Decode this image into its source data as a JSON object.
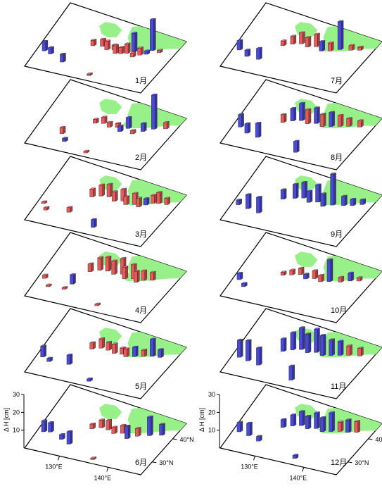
{
  "chart_data": {
    "type": "bar3d",
    "title": "",
    "colors": {
      "positive": "#e85a5a",
      "negative": "#4a4ad8",
      "land": "#98f089",
      "frame": "#000000"
    },
    "zaxis": {
      "label": "Δ H [cm]",
      "ticks": [
        10,
        20,
        30
      ],
      "range": [
        0,
        30
      ]
    },
    "lon_ticks": [
      {
        "value": 130,
        "label": "130°E"
      },
      {
        "value": 140,
        "label": "140°E"
      }
    ],
    "lat_ticks": [
      {
        "value": 30,
        "label": "30°N"
      },
      {
        "value": 40,
        "label": "40°N"
      }
    ],
    "panels": [
      {
        "month": 1,
        "label": "1月",
        "bars": [
          [
            0.06,
            0.27,
            12,
            "neg"
          ],
          [
            0.12,
            0.25,
            8,
            "neg"
          ],
          [
            0.25,
            0.18,
            10,
            "neg"
          ],
          [
            0.38,
            0.52,
            7,
            "pos"
          ],
          [
            0.45,
            0.55,
            9,
            "pos"
          ],
          [
            0.5,
            0.52,
            11,
            "pos"
          ],
          [
            0.55,
            0.55,
            6,
            "pos"
          ],
          [
            0.58,
            0.5,
            10,
            "pos"
          ],
          [
            0.62,
            0.52,
            8,
            "pos"
          ],
          [
            0.66,
            0.55,
            12,
            "pos"
          ],
          [
            0.7,
            0.6,
            24,
            "neg"
          ],
          [
            0.72,
            0.52,
            5,
            "pos"
          ],
          [
            0.76,
            0.58,
            9,
            "pos"
          ],
          [
            0.8,
            0.62,
            4,
            "neg"
          ],
          [
            0.82,
            0.7,
            40,
            "neg"
          ],
          [
            0.88,
            0.7,
            3,
            "pos"
          ],
          [
            0.52,
            0.08,
            2,
            "pos"
          ]
        ]
      },
      {
        "month": 2,
        "label": "2月",
        "bars": [
          [
            0.22,
            0.25,
            8,
            "pos"
          ],
          [
            0.28,
            0.15,
            4,
            "neg"
          ],
          [
            0.4,
            0.52,
            5,
            "pos"
          ],
          [
            0.46,
            0.55,
            8,
            "pos"
          ],
          [
            0.52,
            0.52,
            6,
            "pos"
          ],
          [
            0.58,
            0.55,
            5,
            "pos"
          ],
          [
            0.62,
            0.5,
            7,
            "neg"
          ],
          [
            0.66,
            0.58,
            14,
            "neg"
          ],
          [
            0.72,
            0.52,
            4,
            "pos"
          ],
          [
            0.78,
            0.6,
            10,
            "neg"
          ],
          [
            0.84,
            0.68,
            44,
            "neg"
          ],
          [
            0.92,
            0.74,
            8,
            "pos"
          ],
          [
            0.5,
            0.06,
            2,
            "pos"
          ]
        ]
      },
      {
        "month": 3,
        "label": "3月",
        "bars": [
          [
            0.05,
            0.28,
            2,
            "pos"
          ],
          [
            0.1,
            0.2,
            3,
            "pos"
          ],
          [
            0.28,
            0.25,
            6,
            "pos"
          ],
          [
            0.36,
            0.55,
            10,
            "pos"
          ],
          [
            0.42,
            0.6,
            14,
            "pos"
          ],
          [
            0.48,
            0.62,
            16,
            "pos"
          ],
          [
            0.54,
            0.58,
            12,
            "pos"
          ],
          [
            0.6,
            0.62,
            15,
            "pos"
          ],
          [
            0.64,
            0.58,
            10,
            "pos"
          ],
          [
            0.7,
            0.62,
            14,
            "pos"
          ],
          [
            0.74,
            0.6,
            11,
            "pos"
          ],
          [
            0.78,
            0.66,
            8,
            "neg"
          ],
          [
            0.82,
            0.72,
            10,
            "pos"
          ],
          [
            0.86,
            0.74,
            14,
            "pos"
          ],
          [
            0.92,
            0.76,
            8,
            "pos"
          ],
          [
            0.54,
            0.12,
            10,
            "neg"
          ]
        ]
      },
      {
        "month": 4,
        "label": "4月",
        "bars": [
          [
            0.05,
            0.3,
            4,
            "pos"
          ],
          [
            0.12,
            0.2,
            2,
            "pos"
          ],
          [
            0.25,
            0.22,
            2,
            "pos"
          ],
          [
            0.34,
            0.56,
            10,
            "pos"
          ],
          [
            0.4,
            0.62,
            16,
            "pos"
          ],
          [
            0.46,
            0.64,
            18,
            "pos"
          ],
          [
            0.52,
            0.62,
            17,
            "pos"
          ],
          [
            0.58,
            0.66,
            20,
            "pos"
          ],
          [
            0.62,
            0.6,
            15,
            "pos"
          ],
          [
            0.68,
            0.64,
            18,
            "pos"
          ],
          [
            0.72,
            0.6,
            14,
            "pos"
          ],
          [
            0.76,
            0.66,
            12,
            "pos"
          ],
          [
            0.82,
            0.7,
            10,
            "pos"
          ],
          [
            0.28,
            0.32,
            12,
            "neg"
          ],
          [
            0.58,
            0.1,
            2,
            "pos"
          ]
        ]
      },
      {
        "month": 5,
        "label": "5月",
        "bars": [
          [
            0.05,
            0.26,
            14,
            "neg"
          ],
          [
            0.12,
            0.22,
            4,
            "neg"
          ],
          [
            0.28,
            0.25,
            12,
            "neg"
          ],
          [
            0.36,
            0.55,
            8,
            "pos"
          ],
          [
            0.42,
            0.6,
            12,
            "pos"
          ],
          [
            0.48,
            0.6,
            10,
            "pos"
          ],
          [
            0.54,
            0.58,
            12,
            "pos"
          ],
          [
            0.6,
            0.6,
            8,
            "pos"
          ],
          [
            0.64,
            0.58,
            10,
            "pos"
          ],
          [
            0.7,
            0.62,
            12,
            "neg"
          ],
          [
            0.76,
            0.66,
            8,
            "pos"
          ],
          [
            0.82,
            0.7,
            22,
            "neg"
          ],
          [
            0.88,
            0.72,
            10,
            "neg"
          ],
          [
            0.52,
            0.08,
            3,
            "neg"
          ]
        ]
      },
      {
        "month": 6,
        "label": "6月",
        "bars": [
          [
            0.05,
            0.28,
            14,
            "neg"
          ],
          [
            0.1,
            0.3,
            12,
            "neg"
          ],
          [
            0.22,
            0.24,
            6,
            "neg"
          ],
          [
            0.3,
            0.2,
            16,
            "neg"
          ],
          [
            0.38,
            0.5,
            6,
            "pos"
          ],
          [
            0.44,
            0.55,
            10,
            "pos"
          ],
          [
            0.5,
            0.55,
            12,
            "pos"
          ],
          [
            0.56,
            0.52,
            8,
            "pos"
          ],
          [
            0.62,
            0.56,
            10,
            "pos"
          ],
          [
            0.68,
            0.5,
            16,
            "neg"
          ],
          [
            0.74,
            0.58,
            10,
            "pos"
          ],
          [
            0.82,
            0.64,
            24,
            "neg"
          ],
          [
            0.9,
            0.7,
            14,
            "neg"
          ],
          [
            0.56,
            0.06,
            2,
            "pos"
          ]
        ]
      },
      {
        "month": 7,
        "label": "7月",
        "bars": [
          [
            0.05,
            0.28,
            12,
            "neg"
          ],
          [
            0.14,
            0.22,
            8,
            "neg"
          ],
          [
            0.24,
            0.22,
            14,
            "neg"
          ],
          [
            0.34,
            0.5,
            6,
            "pos"
          ],
          [
            0.4,
            0.56,
            10,
            "pos"
          ],
          [
            0.46,
            0.6,
            14,
            "pos"
          ],
          [
            0.52,
            0.58,
            12,
            "pos"
          ],
          [
            0.58,
            0.62,
            16,
            "pos"
          ],
          [
            0.64,
            0.58,
            12,
            "neg"
          ],
          [
            0.7,
            0.62,
            10,
            "pos"
          ],
          [
            0.76,
            0.68,
            36,
            "neg"
          ],
          [
            0.84,
            0.72,
            6,
            "pos"
          ],
          [
            0.9,
            0.76,
            4,
            "pos"
          ]
        ]
      },
      {
        "month": 8,
        "label": "8月",
        "bars": [
          [
            0.06,
            0.28,
            16,
            "neg"
          ],
          [
            0.14,
            0.22,
            12,
            "neg"
          ],
          [
            0.24,
            0.2,
            18,
            "neg"
          ],
          [
            0.34,
            0.5,
            10,
            "pos"
          ],
          [
            0.4,
            0.56,
            16,
            "neg"
          ],
          [
            0.46,
            0.6,
            22,
            "neg"
          ],
          [
            0.52,
            0.58,
            18,
            "pos"
          ],
          [
            0.58,
            0.62,
            20,
            "neg"
          ],
          [
            0.64,
            0.6,
            16,
            "pos"
          ],
          [
            0.7,
            0.64,
            18,
            "neg"
          ],
          [
            0.76,
            0.68,
            14,
            "pos"
          ],
          [
            0.82,
            0.72,
            10,
            "pos"
          ],
          [
            0.9,
            0.76,
            8,
            "pos"
          ],
          [
            0.6,
            0.12,
            14,
            "neg"
          ]
        ]
      },
      {
        "month": 9,
        "label": "9月",
        "bars": [
          [
            0.05,
            0.26,
            6,
            "neg"
          ],
          [
            0.14,
            0.24,
            18,
            "neg"
          ],
          [
            0.24,
            0.22,
            20,
            "neg"
          ],
          [
            0.34,
            0.5,
            12,
            "neg"
          ],
          [
            0.42,
            0.56,
            18,
            "neg"
          ],
          [
            0.48,
            0.6,
            20,
            "neg"
          ],
          [
            0.54,
            0.56,
            14,
            "neg"
          ],
          [
            0.6,
            0.6,
            22,
            "neg"
          ],
          [
            0.66,
            0.56,
            16,
            "neg"
          ],
          [
            0.72,
            0.62,
            40,
            "neg"
          ],
          [
            0.8,
            0.66,
            12,
            "neg"
          ],
          [
            0.86,
            0.7,
            8,
            "neg"
          ],
          [
            0.92,
            0.76,
            6,
            "neg"
          ]
        ]
      },
      {
        "month": 10,
        "label": "10月",
        "bars": [
          [
            0.05,
            0.28,
            8,
            "neg"
          ],
          [
            0.12,
            0.2,
            4,
            "neg"
          ],
          [
            0.34,
            0.5,
            4,
            "pos"
          ],
          [
            0.4,
            0.54,
            6,
            "pos"
          ],
          [
            0.46,
            0.58,
            8,
            "pos"
          ],
          [
            0.52,
            0.54,
            6,
            "neg"
          ],
          [
            0.58,
            0.58,
            10,
            "pos"
          ],
          [
            0.64,
            0.56,
            8,
            "pos"
          ],
          [
            0.7,
            0.6,
            28,
            "neg"
          ],
          [
            0.78,
            0.64,
            6,
            "pos"
          ],
          [
            0.84,
            0.7,
            10,
            "neg"
          ],
          [
            0.9,
            0.74,
            4,
            "pos"
          ]
        ]
      },
      {
        "month": 11,
        "label": "11月",
        "bars": [
          [
            0.06,
            0.26,
            22,
            "neg"
          ],
          [
            0.14,
            0.24,
            26,
            "neg"
          ],
          [
            0.24,
            0.22,
            22,
            "neg"
          ],
          [
            0.34,
            0.5,
            16,
            "neg"
          ],
          [
            0.4,
            0.56,
            22,
            "neg"
          ],
          [
            0.46,
            0.6,
            28,
            "neg"
          ],
          [
            0.52,
            0.58,
            24,
            "neg"
          ],
          [
            0.58,
            0.62,
            30,
            "neg"
          ],
          [
            0.64,
            0.6,
            26,
            "neg"
          ],
          [
            0.7,
            0.64,
            20,
            "neg"
          ],
          [
            0.76,
            0.68,
            18,
            "neg"
          ],
          [
            0.82,
            0.72,
            12,
            "pos"
          ],
          [
            0.9,
            0.76,
            10,
            "pos"
          ],
          [
            0.56,
            0.12,
            18,
            "neg"
          ]
        ]
      },
      {
        "month": 12,
        "label": "12月",
        "bars": [
          [
            0.05,
            0.28,
            12,
            "neg"
          ],
          [
            0.14,
            0.26,
            16,
            "neg"
          ],
          [
            0.24,
            0.22,
            6,
            "neg"
          ],
          [
            0.34,
            0.5,
            10,
            "neg"
          ],
          [
            0.4,
            0.56,
            14,
            "neg"
          ],
          [
            0.46,
            0.6,
            18,
            "neg"
          ],
          [
            0.52,
            0.58,
            16,
            "neg"
          ],
          [
            0.58,
            0.62,
            20,
            "neg"
          ],
          [
            0.64,
            0.6,
            18,
            "neg"
          ],
          [
            0.7,
            0.64,
            24,
            "neg"
          ],
          [
            0.76,
            0.68,
            12,
            "pos"
          ],
          [
            0.82,
            0.7,
            16,
            "neg"
          ],
          [
            0.88,
            0.74,
            14,
            "pos"
          ],
          [
            0.6,
            0.1,
            4,
            "neg"
          ]
        ]
      }
    ]
  }
}
